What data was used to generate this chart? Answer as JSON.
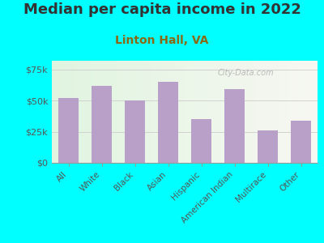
{
  "title": "Median per capita income in 2022",
  "subtitle": "Linton Hall, VA",
  "categories": [
    "All",
    "White",
    "Black",
    "Asian",
    "Hispanic",
    "American Indian",
    "Multirace",
    "Other"
  ],
  "values": [
    52000,
    62000,
    50000,
    65000,
    35000,
    59000,
    26000,
    34000
  ],
  "bar_color": "#b8a0c8",
  "background_color": "#00FFFF",
  "title_color": "#333333",
  "subtitle_color": "#8B6914",
  "ytick_labels": [
    "$0",
    "$25k",
    "$50k",
    "$75k"
  ],
  "ytick_values": [
    0,
    25000,
    50000,
    75000
  ],
  "ylim": [
    0,
    82000
  ],
  "watermark": "City-Data.com",
  "title_fontsize": 13,
  "subtitle_fontsize": 10,
  "tick_fontsize": 8,
  "xlabel_fontsize": 7.5
}
